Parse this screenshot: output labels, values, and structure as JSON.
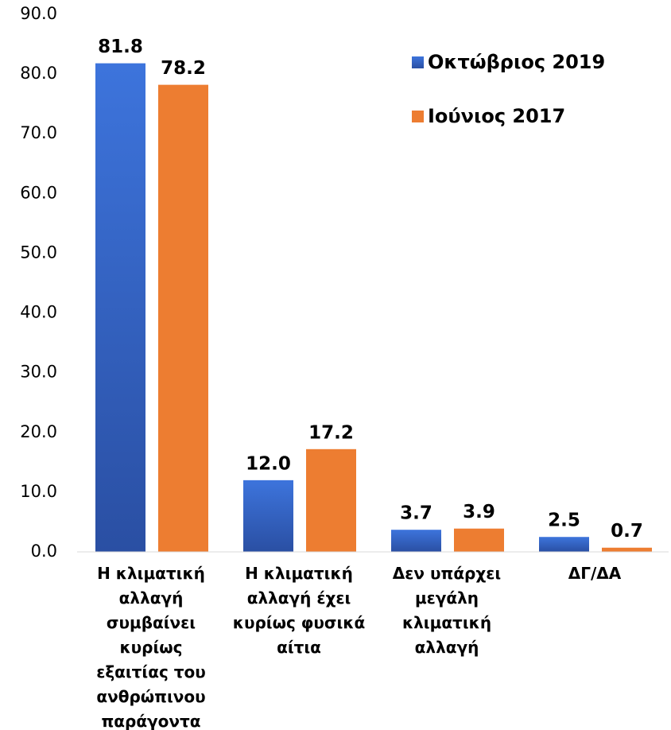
{
  "chart_data": {
    "type": "bar",
    "categories": [
      "Η κλιματική αλλαγή συμβαίνει κυρίως εξαιτίας του ανθρώπινου παράγοντα",
      "Η κλιματική αλλαγή έχει κυρίως φυσικά αίτια",
      "Δεν υπάρχει μεγάλη κλιματική αλλαγή",
      "ΔΓ/ΔΑ"
    ],
    "series": [
      {
        "name": "Οκτώβριος 2019",
        "color": "#3366cc",
        "values": [
          81.8,
          12.0,
          3.7,
          2.5
        ],
        "value_labels": [
          "81.8",
          "12.0",
          "3.7",
          "2.5"
        ]
      },
      {
        "name": "Ιούνιος 2017",
        "color": "#ed7d31",
        "values": [
          78.2,
          17.2,
          3.9,
          0.7
        ],
        "value_labels": [
          "78.2",
          "17.2",
          "3.9",
          "0.7"
        ]
      }
    ],
    "ylim": [
      0,
      90
    ],
    "yticks": [
      {
        "value": 0,
        "label": "0.0"
      },
      {
        "value": 10,
        "label": "10.0"
      },
      {
        "value": 20,
        "label": "20.0"
      },
      {
        "value": 30,
        "label": "30.0"
      },
      {
        "value": 40,
        "label": "40.0"
      },
      {
        "value": 50,
        "label": "50.0"
      },
      {
        "value": 60,
        "label": "60.0"
      },
      {
        "value": 70,
        "label": "70.0"
      },
      {
        "value": 80,
        "label": "80.0"
      },
      {
        "value": 90,
        "label": "90.0"
      }
    ],
    "grid": false,
    "legend": "upper right"
  }
}
